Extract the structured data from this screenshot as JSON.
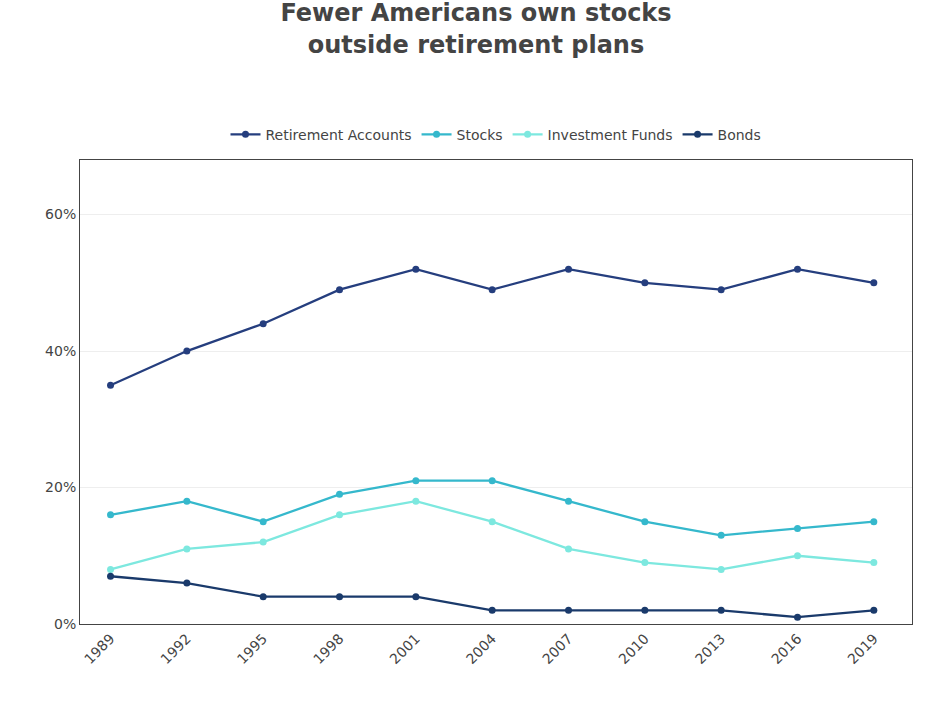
{
  "chart_data": {
    "type": "line",
    "title": "Fewer Americans own stocks\noutside retirement plans",
    "x": [
      1989,
      1992,
      1995,
      1998,
      2001,
      2004,
      2007,
      2010,
      2013,
      2016,
      2019
    ],
    "series": [
      {
        "name": "Retirement Accounts",
        "color": "#253e7e",
        "values": [
          35,
          40,
          44,
          49,
          52,
          49,
          52,
          50,
          49,
          52,
          50
        ]
      },
      {
        "name": "Stocks",
        "color": "#35b8cc",
        "values": [
          16,
          18,
          15,
          19,
          21,
          21,
          18,
          15,
          13,
          14,
          15
        ]
      },
      {
        "name": "Investment Funds",
        "color": "#7de8df",
        "values": [
          8,
          11,
          12,
          16,
          18,
          15,
          11,
          9,
          8,
          10,
          9
        ]
      },
      {
        "name": "Bonds",
        "color": "#1a3a6b",
        "values": [
          7,
          6,
          4,
          4,
          4,
          2,
          2,
          2,
          2,
          1,
          2
        ]
      }
    ],
    "xlim": [
      1987.8,
      2020.5
    ],
    "xticks": [
      1989,
      1992,
      1995,
      1998,
      2001,
      2004,
      2007,
      2010,
      2013,
      2016,
      2019
    ],
    "ylim": [
      0,
      68
    ],
    "yticks": [
      {
        "value": 0,
        "label": "0%"
      },
      {
        "value": 20,
        "label": "20%"
      },
      {
        "value": 40,
        "label": "40%"
      },
      {
        "value": 60,
        "label": "60%"
      }
    ],
    "grid": "y",
    "legend": "top",
    "marker": "circle"
  }
}
